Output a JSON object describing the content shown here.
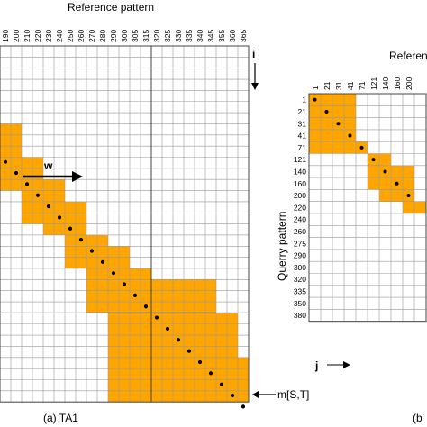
{
  "panel_a": {
    "title": "Reference pattern",
    "columns": [
      "190",
      "200",
      "210",
      "220",
      "230",
      "240",
      "250",
      "260",
      "270",
      "280",
      "290",
      "300",
      "305",
      "315",
      "320",
      "325",
      "330",
      "335",
      "340",
      "345",
      "355",
      "360",
      "365"
    ],
    "i_label": "i",
    "w_label": "w",
    "m_label": "m[S,T]",
    "caption": "(a) TA1"
  },
  "panel_b": {
    "title": "Referen",
    "columns": [
      "1",
      "21",
      "31",
      "41",
      "71",
      "121",
      "140",
      "160",
      "200"
    ],
    "rows": [
      "1",
      "21",
      "31",
      "41",
      "71",
      "121",
      "140",
      "160",
      "200",
      "220",
      "240",
      "260",
      "275",
      "290",
      "300",
      "320",
      "335",
      "350",
      "380"
    ],
    "query_label": "Querry pattern",
    "j_label": "j",
    "caption": "(b"
  },
  "colors": {
    "fill": "#FFA500",
    "grid": "#999999",
    "border": "#444444"
  }
}
